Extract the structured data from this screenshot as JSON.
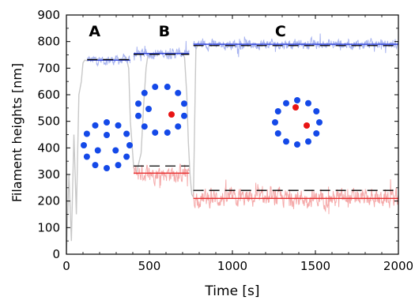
{
  "chart_data": {
    "type": "line",
    "xlabel": "Time [s]",
    "ylabel": "Filament heights [nm]",
    "xlim": [
      0,
      2000
    ],
    "ylim": [
      0,
      900
    ],
    "xticks": [
      0,
      500,
      1000,
      1500,
      2000
    ],
    "yticks": [
      0,
      100,
      200,
      300,
      400,
      500,
      600,
      700,
      800,
      900
    ],
    "grid": false,
    "legend": "none",
    "panel_labels": [
      {
        "text": "A",
        "x": 170,
        "y": 820
      },
      {
        "text": "B",
        "x": 590,
        "y": 820
      },
      {
        "text": "C",
        "x": 1290,
        "y": 820
      }
    ],
    "colors": {
      "blue_trace": "#a8b4f0",
      "blue_line": "#2a3fd9",
      "red_trace": "#f5aaaa",
      "red_line": "#e83030",
      "gray_trace": "#c8c8c8",
      "dash": "#000000",
      "dot_blue": "#1449e8",
      "dot_red": "#e81414"
    },
    "series": [
      {
        "role": "gray transition trace",
        "color": "gray_trace",
        "points": [
          [
            0,
            0
          ],
          [
            15,
            300
          ],
          [
            30,
            50
          ],
          [
            45,
            450
          ],
          [
            60,
            150
          ],
          [
            75,
            600
          ],
          [
            90,
            650
          ],
          [
            100,
            720
          ],
          [
            110,
            730
          ],
          [
            125,
            728
          ],
          [
            130,
            735
          ],
          [
            340,
            733
          ],
          [
            360,
            740
          ],
          [
            375,
            700
          ],
          [
            385,
            500
          ],
          [
            395,
            420
          ],
          [
            405,
            325
          ],
          [
            425,
            310
          ],
          [
            435,
            340
          ],
          [
            450,
            380
          ],
          [
            465,
            560
          ],
          [
            480,
            700
          ],
          [
            490,
            745
          ],
          [
            500,
            755
          ],
          [
            700,
            758
          ],
          [
            712,
            740
          ],
          [
            725,
            600
          ],
          [
            735,
            420
          ],
          [
            745,
            300
          ],
          [
            755,
            225
          ],
          [
            765,
            215
          ],
          [
            780,
            770
          ],
          [
            790,
            785
          ]
        ]
      }
    ],
    "segments": [
      {
        "segment": "A",
        "blue_mean": 730,
        "blue_dashed": 732,
        "x_range": [
          125,
          385
        ]
      },
      {
        "segment": "B",
        "blue_mean": 755,
        "blue_dashed": 752,
        "red_mean": 305,
        "red_dashed": 332,
        "x_range": [
          405,
          740
        ]
      },
      {
        "segment": "C",
        "blue_mean": 790,
        "blue_dashed": 785,
        "red_mean": 210,
        "red_dashed": 240,
        "x_range": [
          765,
          2000
        ]
      }
    ]
  }
}
